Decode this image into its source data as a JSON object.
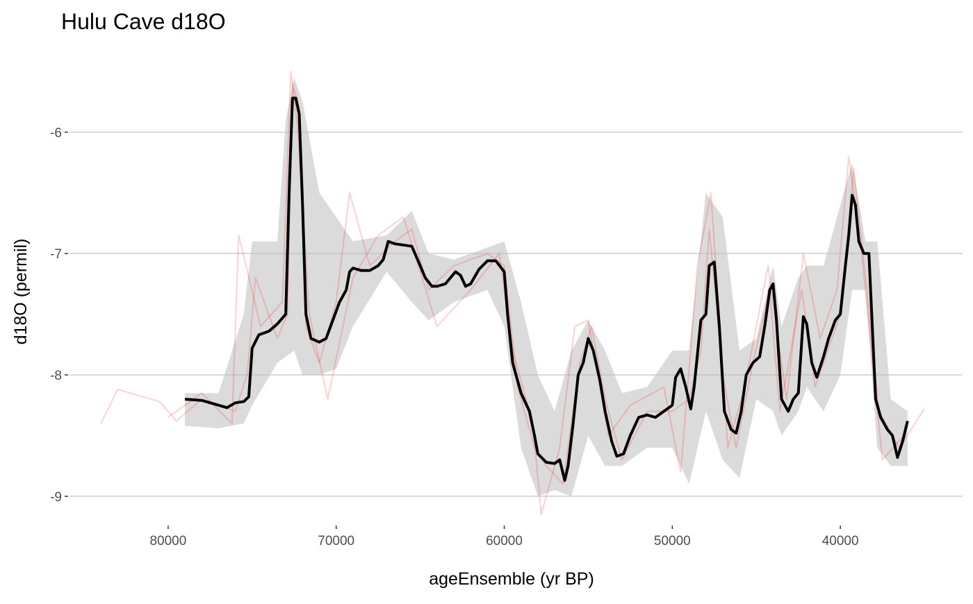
{
  "chart_data": {
    "type": "line",
    "title": "Hulu Cave d18O",
    "x_label": "ageEnsemble (yr BP)",
    "y_label": "d18O (permil)",
    "xlim": [
      85868,
      32727
    ],
    "ylim": [
      -9.23,
      -5.34
    ],
    "xticks": [
      80000,
      70000,
      60000,
      50000,
      40000
    ],
    "yticks": [
      -9,
      -8,
      -7,
      -6
    ],
    "grid": true,
    "bands": [
      {
        "color": "#bdbdbd",
        "opacity": 0.55,
        "x": [
          79000,
          77000,
          75500,
          75000,
          73500,
          73000,
          72500,
          72000,
          71000,
          70000,
          69000,
          67000,
          65500,
          64500,
          63000,
          61000,
          60000,
          59000,
          58000,
          57000,
          56000,
          55000,
          54000,
          53000,
          51500,
          50000,
          49000,
          48000,
          47000,
          46000,
          45000,
          44000,
          43500,
          42500,
          42000,
          41000,
          40000,
          39300,
          38500,
          37800,
          37000,
          36000
        ],
        "lower": [
          -8.42,
          -8.44,
          -8.4,
          -8.25,
          -7.9,
          -7.85,
          -7.8,
          -8.0,
          -8.0,
          -7.95,
          -7.6,
          -7.15,
          -7.4,
          -7.55,
          -7.4,
          -7.3,
          -7.6,
          -8.6,
          -9.0,
          -8.95,
          -9.0,
          -8.5,
          -8.75,
          -8.75,
          -8.6,
          -8.6,
          -8.9,
          -8.3,
          -8.7,
          -8.85,
          -8.2,
          -8.3,
          -8.5,
          -8.3,
          -8.1,
          -8.3,
          -8.0,
          -7.3,
          -7.3,
          -8.6,
          -8.75,
          -8.75
        ],
        "upper": [
          -8.15,
          -8.15,
          -7.5,
          -6.9,
          -6.9,
          -5.9,
          -5.55,
          -5.75,
          -6.5,
          -6.7,
          -6.9,
          -6.85,
          -6.65,
          -7.0,
          -7.05,
          -6.95,
          -6.9,
          -7.4,
          -8.0,
          -8.3,
          -7.8,
          -7.55,
          -7.8,
          -8.15,
          -8.1,
          -7.8,
          -7.8,
          -6.5,
          -6.7,
          -7.8,
          -7.7,
          -7.1,
          -7.6,
          -7.2,
          -7.1,
          -7.1,
          -6.6,
          -6.25,
          -6.9,
          -6.9,
          -8.2,
          -8.3
        ]
      }
    ],
    "series": [
      {
        "color": "#ff0000",
        "opacity": 0.18,
        "width": 2,
        "x": [
          84000,
          83000,
          80500,
          79500,
          78000,
          76000,
          75300,
          74800,
          73500,
          72900,
          72600,
          72200,
          71800,
          71000,
          70000,
          69200,
          68000,
          66500,
          65500,
          64500,
          63000,
          61000,
          60000,
          59200,
          58200,
          57500,
          56500,
          55500,
          54800,
          54000,
          53000,
          51500,
          50000,
          49000,
          48300,
          47800,
          47000,
          46200,
          45200,
          44200,
          43600,
          42300,
          41500,
          40000,
          39200,
          38500,
          37700,
          36500,
          35000
        ],
        "values": [
          -8.4,
          -8.12,
          -8.22,
          -8.38,
          -8.2,
          -8.3,
          -8.0,
          -7.2,
          -7.7,
          -7.5,
          -5.6,
          -5.8,
          -7.6,
          -7.9,
          -7.4,
          -6.5,
          -7.1,
          -6.9,
          -6.8,
          -7.3,
          -7.1,
          -7.0,
          -7.1,
          -8.1,
          -8.6,
          -8.75,
          -8.9,
          -7.9,
          -7.6,
          -8.2,
          -8.7,
          -8.3,
          -8.3,
          -8.2,
          -7.8,
          -6.8,
          -8.0,
          -8.6,
          -7.9,
          -7.3,
          -8.3,
          -7.3,
          -8.1,
          -7.5,
          -6.3,
          -7.2,
          -8.3,
          -8.6,
          -8.28
        ]
      },
      {
        "color": "#ff0000",
        "opacity": 0.18,
        "width": 2,
        "x": [
          80000,
          78000,
          76200,
          75800,
          74500,
          73200,
          72700,
          72300,
          71600,
          70500,
          69000,
          67500,
          66000,
          64000,
          62000,
          60300,
          59500,
          58300,
          57800,
          56700,
          55800,
          55000,
          53800,
          52500,
          50500,
          49500,
          48500,
          47700,
          46700,
          45700,
          44300,
          43200,
          42200,
          41200,
          40200,
          39500,
          38800,
          37500,
          36200
        ],
        "values": [
          -8.35,
          -8.15,
          -8.4,
          -6.85,
          -7.6,
          -7.4,
          -5.5,
          -5.95,
          -7.5,
          -8.2,
          -7.2,
          -6.85,
          -6.7,
          -7.6,
          -7.3,
          -7.0,
          -7.8,
          -8.4,
          -9.15,
          -8.6,
          -7.6,
          -7.55,
          -8.5,
          -8.25,
          -8.1,
          -8.8,
          -7.1,
          -6.5,
          -8.6,
          -8.1,
          -7.1,
          -8.2,
          -7.0,
          -7.7,
          -7.3,
          -6.2,
          -6.9,
          -8.7,
          -8.5
        ]
      },
      {
        "color": "#000000",
        "opacity": 1,
        "width": 4,
        "x": [
          79000,
          78000,
          77000,
          76500,
          76000,
          75500,
          75200,
          75000,
          74600,
          74000,
          73500,
          73000,
          72800,
          72600,
          72400,
          72200,
          72000,
          71800,
          71500,
          71000,
          70600,
          70200,
          69800,
          69400,
          69200,
          69000,
          68500,
          68000,
          67500,
          67200,
          66900,
          66500,
          66000,
          65500,
          65000,
          64700,
          64300,
          64000,
          63500,
          63200,
          62900,
          62600,
          62300,
          62000,
          61500,
          61000,
          60500,
          60000,
          59800,
          59500,
          59000,
          58500,
          58200,
          58000,
          57500,
          57000,
          56700,
          56400,
          56200,
          55900,
          55600,
          55300,
          55000,
          54700,
          54300,
          54000,
          53600,
          53300,
          52900,
          52500,
          52000,
          51500,
          51000,
          50500,
          50000,
          49800,
          49500,
          49200,
          48900,
          48700,
          48300,
          48000,
          47800,
          47500,
          47200,
          46900,
          46500,
          46200,
          45900,
          45600,
          45200,
          44800,
          44500,
          44200,
          44000,
          43800,
          43500,
          43100,
          42800,
          42500,
          42200,
          42000,
          41700,
          41400,
          41000,
          40700,
          40300,
          40000,
          39700,
          39500,
          39300,
          39100,
          38900,
          38600,
          38300,
          37900,
          37600,
          37200,
          36900,
          36600,
          36300,
          36000
        ],
        "values": [
          -8.2,
          -8.21,
          -8.25,
          -8.27,
          -8.23,
          -8.22,
          -8.18,
          -7.78,
          -7.67,
          -7.64,
          -7.58,
          -7.5,
          -6.5,
          -5.72,
          -5.72,
          -5.85,
          -6.6,
          -7.5,
          -7.7,
          -7.73,
          -7.7,
          -7.55,
          -7.4,
          -7.3,
          -7.15,
          -7.12,
          -7.14,
          -7.14,
          -7.1,
          -7.05,
          -6.9,
          -6.92,
          -6.93,
          -6.94,
          -7.1,
          -7.2,
          -7.27,
          -7.27,
          -7.25,
          -7.2,
          -7.15,
          -7.18,
          -7.27,
          -7.25,
          -7.13,
          -7.06,
          -7.06,
          -7.15,
          -7.5,
          -7.9,
          -8.15,
          -8.3,
          -8.5,
          -8.65,
          -8.72,
          -8.73,
          -8.7,
          -8.87,
          -8.75,
          -8.4,
          -8.0,
          -7.9,
          -7.7,
          -7.8,
          -8.05,
          -8.3,
          -8.55,
          -8.67,
          -8.65,
          -8.5,
          -8.35,
          -8.33,
          -8.35,
          -8.3,
          -8.25,
          -8.02,
          -7.95,
          -8.1,
          -8.28,
          -8.1,
          -7.55,
          -7.5,
          -7.1,
          -7.07,
          -7.6,
          -8.3,
          -8.45,
          -8.48,
          -8.3,
          -8.0,
          -7.9,
          -7.85,
          -7.6,
          -7.3,
          -7.25,
          -7.55,
          -8.2,
          -8.3,
          -8.2,
          -8.15,
          -7.52,
          -7.58,
          -7.9,
          -8.02,
          -7.85,
          -7.7,
          -7.55,
          -7.5,
          -7.1,
          -6.85,
          -6.52,
          -6.6,
          -6.9,
          -7.0,
          -7.0,
          -8.2,
          -8.35,
          -8.45,
          -8.5,
          -8.68,
          -8.55,
          -8.38
        ]
      }
    ]
  }
}
